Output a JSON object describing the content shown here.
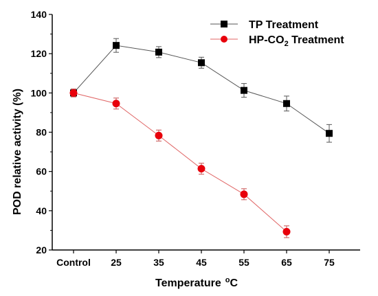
{
  "chart_data": {
    "type": "line",
    "title": "",
    "xlabel": "Temperature",
    "xlabel_unit": "°C",
    "ylabel": "POD relative activity (%)",
    "ylim": [
      20,
      140
    ],
    "yticks": [
      20,
      40,
      60,
      80,
      100,
      120,
      140
    ],
    "categories": [
      "Control",
      "25",
      "35",
      "45",
      "55",
      "65",
      "75"
    ],
    "grid": false,
    "legend_position": "top-right",
    "series": [
      {
        "name": "TP Treatment",
        "color": "#000000",
        "line_color": "#555555",
        "marker": "square",
        "values": [
          100,
          124.2,
          120.8,
          115.4,
          101.3,
          94.6,
          79.4
        ],
        "errors": [
          2.0,
          3.5,
          2.8,
          2.8,
          3.5,
          3.8,
          4.5
        ]
      },
      {
        "name_parts": [
          "HP-CO",
          "2",
          " Treatment"
        ],
        "color": "#e8000b",
        "line_color": "#e06666",
        "marker": "circle",
        "values": [
          100,
          94.6,
          78.3,
          61.4,
          48.4,
          29.3,
          null
        ],
        "errors": [
          2.0,
          2.8,
          2.8,
          2.8,
          2.8,
          3.0,
          null
        ]
      }
    ]
  }
}
